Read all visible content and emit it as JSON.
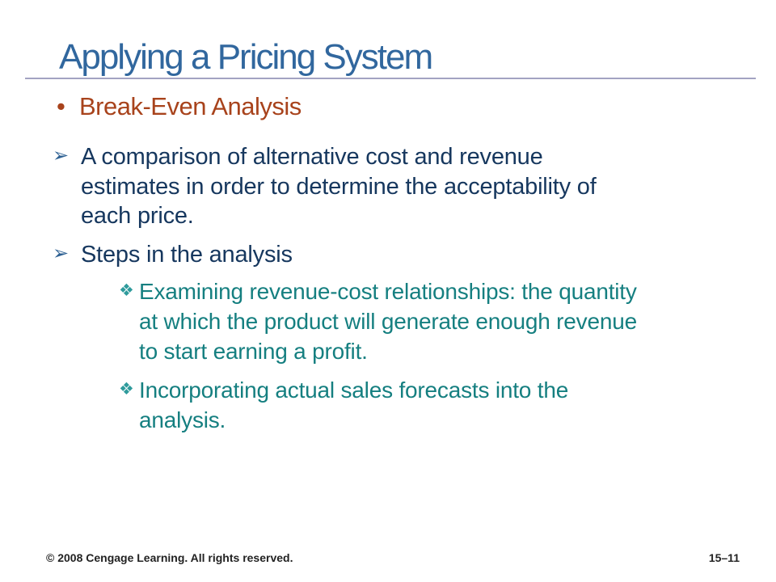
{
  "slide": {
    "title": "Applying a Pricing System",
    "level1": {
      "marker": "•",
      "text": "Break-Even Analysis"
    },
    "level2": [
      {
        "marker": "➢",
        "lines": [
          "A comparison of alternative cost and revenue",
          "estimates in order to determine the acceptability of",
          "each price."
        ]
      },
      {
        "marker": "➢",
        "lines": [
          "Steps in the analysis"
        ]
      }
    ],
    "level3": [
      {
        "marker": "❖",
        "lines": [
          "Examining revenue-cost relationships: the quantity",
          "at which the product will generate enough revenue",
          "to start earning a profit."
        ]
      },
      {
        "marker": "❖",
        "lines": [
          "Incorporating actual sales forecasts into the",
          "analysis."
        ]
      }
    ],
    "footer": {
      "copyright": "© 2008 Cengage Learning. All rights reserved.",
      "page": "15–11"
    },
    "colors": {
      "title": "#31679E",
      "rule": "#A3A3C2",
      "level1_accent": "#A8431C",
      "level2_text": "#16375E",
      "level2_marker": "#2E6193",
      "level3_text": "#157F80",
      "level3_marker": "#2F9B9C",
      "footer_text": "#222222",
      "background": "#FFFFFF"
    }
  }
}
